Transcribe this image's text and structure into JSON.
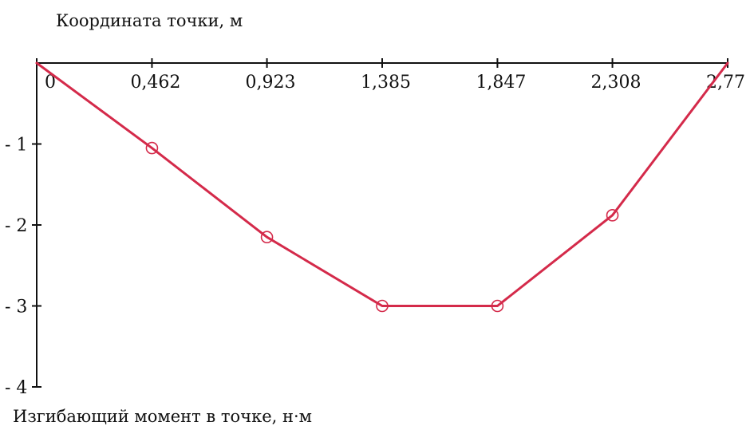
{
  "chart_data": {
    "type": "line",
    "title": "",
    "xlabel": "Координата точки, м",
    "ylabel": "Изгибающий момент в точке, н·м",
    "x": [
      0,
      0.462,
      0.923,
      1.385,
      1.847,
      2.308,
      2.77
    ],
    "x_tick_labels": [
      "0",
      "0,462",
      "0,923",
      "1,385",
      "1,847",
      "2,308",
      "2,77"
    ],
    "y_ticks": [
      -1,
      -2,
      -3,
      -4
    ],
    "y_tick_labels": [
      "- 1",
      "- 2",
      "- 3",
      "- 4"
    ],
    "xlim": [
      0,
      2.77
    ],
    "ylim": [
      -4,
      0
    ],
    "grid": false,
    "x_axis_position": "top",
    "series": [
      {
        "values": [
          0,
          -1.05,
          -2.15,
          -3.0,
          -3.0,
          -1.88,
          0
        ],
        "color": "#d42a4a",
        "marker": "circle",
        "marker_filled": false
      }
    ]
  }
}
